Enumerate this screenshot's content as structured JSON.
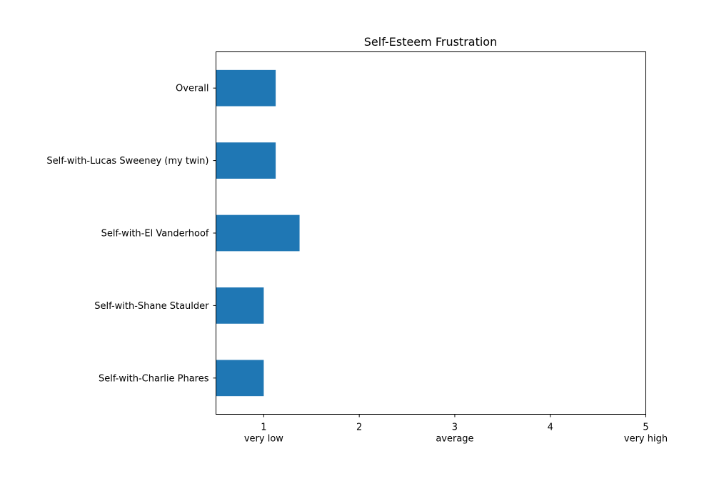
{
  "chart_data": {
    "type": "bar",
    "orientation": "horizontal",
    "title": "Self-Esteem Frustration",
    "xlabel": "",
    "ylabel": "",
    "categories": [
      "Overall",
      "Self-with-Lucas Sweeney (my twin)",
      "Self-with-El Vanderhoof",
      "Self-with-Shane Staulder",
      "Self-with-Charlie Phares"
    ],
    "values": [
      1.125,
      1.125,
      1.375,
      1.0,
      1.0
    ],
    "xlim": [
      0.5,
      5
    ],
    "xticks": [
      1,
      2,
      3,
      4,
      5
    ],
    "xtick_labels": [
      "1",
      "2",
      "3",
      "4",
      "5"
    ],
    "xtick_sublabels": [
      "very low",
      "",
      "average",
      "",
      "very high"
    ],
    "bar_color": "#1f77b4",
    "grid": false,
    "legend": "none"
  }
}
